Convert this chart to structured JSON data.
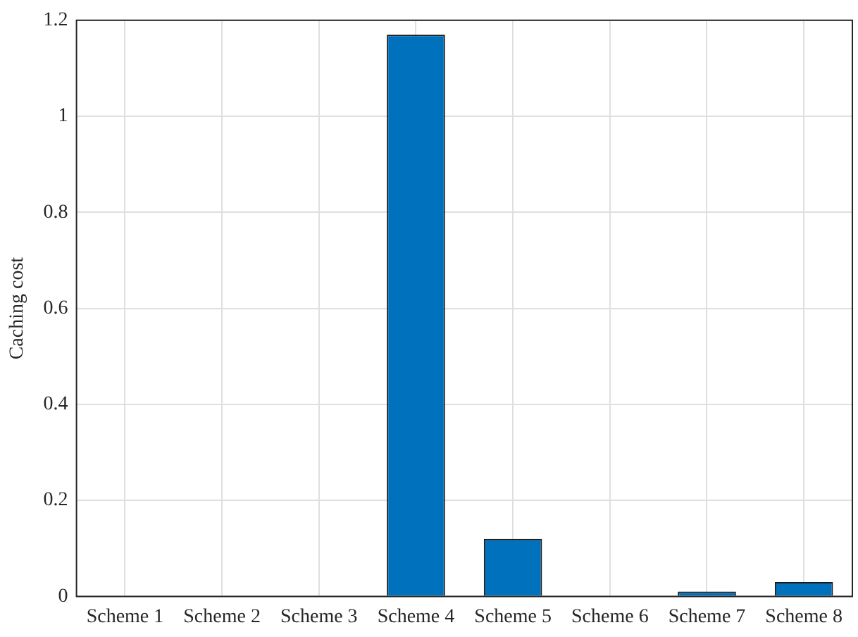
{
  "chart_data": {
    "type": "bar",
    "ylabel": "Caching cost",
    "categories": [
      "Scheme 1",
      "Scheme 2",
      "Scheme 3",
      "Scheme 4",
      "Scheme 5",
      "Scheme 6",
      "Scheme 7",
      "Scheme 8"
    ],
    "values": [
      0,
      0,
      0,
      1.17,
      0.12,
      0,
      0.01,
      0.03
    ],
    "color": "#0072bd",
    "ylim": [
      0,
      1.2
    ],
    "yticks": [
      0,
      0.2,
      0.4,
      0.6,
      0.8,
      1,
      1.2
    ],
    "grid": true
  }
}
